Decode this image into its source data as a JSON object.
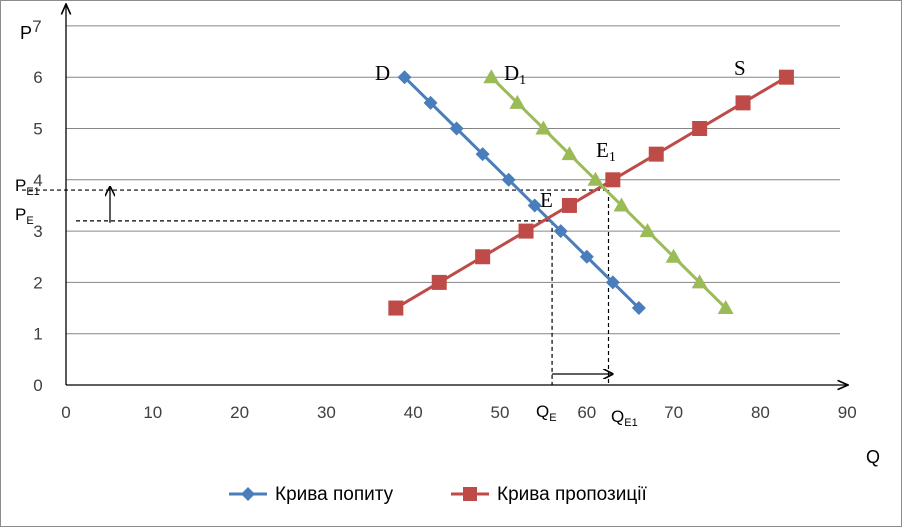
{
  "chart_data": {
    "type": "line",
    "x_label": "Q",
    "y_label": "P",
    "xlim": [
      0,
      90
    ],
    "ylim": [
      0,
      7
    ],
    "x_ticks": [
      0,
      10,
      20,
      30,
      40,
      50,
      60,
      70,
      80,
      90
    ],
    "y_ticks": [
      0,
      1,
      2,
      3,
      4,
      5,
      6,
      7
    ],
    "grid": "horizontal",
    "legend_position": "bottom",
    "series": [
      {
        "name": "Крива попиту",
        "color": "#4A7EBB",
        "marker": "diamond",
        "points": [
          [
            39,
            6
          ],
          [
            42,
            5.5
          ],
          [
            45,
            5
          ],
          [
            48,
            4.5
          ],
          [
            51,
            4
          ],
          [
            54,
            3.5
          ],
          [
            57,
            3
          ],
          [
            60,
            2.5
          ],
          [
            63,
            2
          ],
          [
            66,
            1.5
          ]
        ]
      },
      {
        "name": "Крива пропозиції",
        "color": "#BE4B48",
        "marker": "square",
        "points": [
          [
            38,
            1.5
          ],
          [
            43,
            2
          ],
          [
            48,
            2.5
          ],
          [
            53,
            3
          ],
          [
            58,
            3.5
          ],
          [
            63,
            4
          ],
          [
            68,
            4.5
          ],
          [
            73,
            5
          ],
          [
            78,
            5.5
          ],
          [
            83,
            6
          ]
        ]
      },
      {
        "name": "",
        "color": "#9BBB59",
        "marker": "triangle",
        "points": [
          [
            49,
            6
          ],
          [
            52,
            5.5
          ],
          [
            55,
            5
          ],
          [
            58,
            4.5
          ],
          [
            61,
            4
          ],
          [
            64,
            3.5
          ],
          [
            67,
            3
          ],
          [
            70,
            2.5
          ],
          [
            73,
            2
          ],
          [
            76,
            1.5
          ]
        ]
      }
    ],
    "annotations": {
      "demand_label": "D",
      "supply_label": "S",
      "new_demand_label": "D",
      "new_demand_sub": "1",
      "eq_label": "E",
      "new_eq_label": "E",
      "new_eq_sub": "1",
      "qe_main": "Q",
      "qe_sub": "E",
      "qe1_main": "Q",
      "qe1_sub": "E1",
      "pe_main": "P",
      "pe_sub": "E",
      "pe1_main": "P",
      "pe1_sub": "E1",
      "equilibrium": {
        "q": 56,
        "p": 3.2
      },
      "new_equilibrium": {
        "q": 62.5,
        "p": 3.8
      }
    }
  }
}
